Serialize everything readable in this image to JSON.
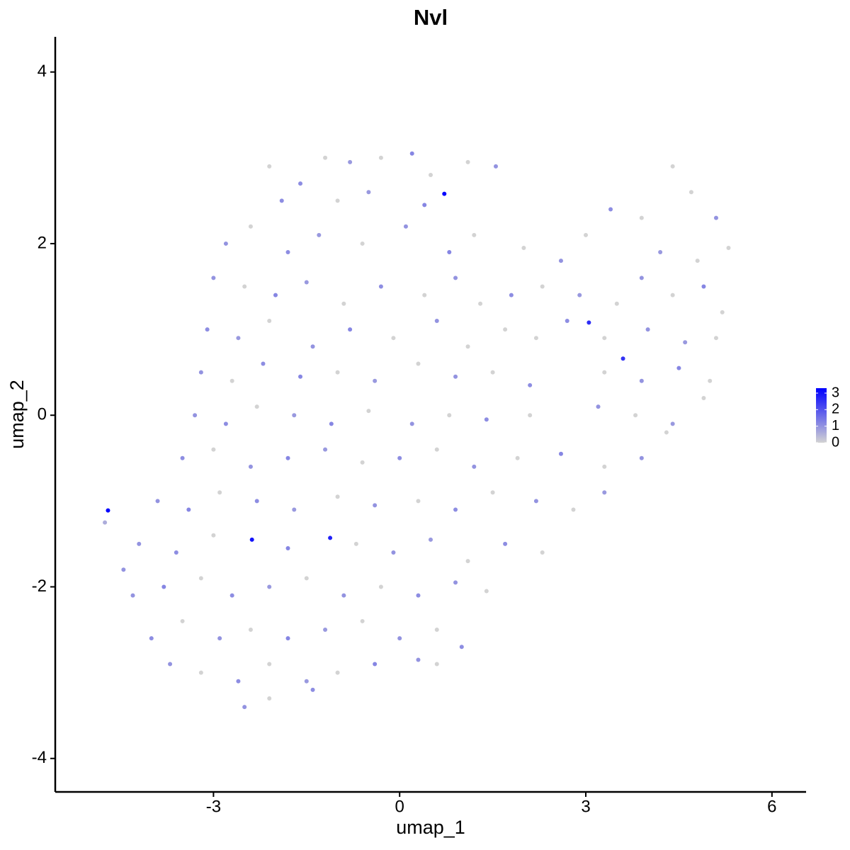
{
  "chart_data": {
    "type": "scatter",
    "title": "Nvl",
    "x_label": "umap_1",
    "y_label": "umap_2",
    "xlim": [
      -5.55,
      6.55
    ],
    "ylim": [
      -4.39,
      4.41
    ],
    "xticks": [
      -3,
      0,
      3,
      6
    ],
    "yticks": [
      -4,
      -2,
      0,
      2,
      4
    ],
    "grid": false,
    "color_low": "#d3d3d3",
    "color_high": "#0000ff",
    "clim": [
      0,
      3.3
    ],
    "cticks": [
      0,
      1,
      2,
      3
    ],
    "legend_position": "right",
    "x": [
      0.72,
      -4.7,
      -2.38,
      -1.12,
      3.05,
      3.6,
      -4.75,
      -4.45,
      -2.1,
      -1.6,
      -1.2,
      -0.8,
      -0.3,
      0.2,
      0.5,
      1.1,
      1.55,
      -1.9,
      -1.0,
      -0.5,
      0.4,
      -2.8,
      -2.4,
      -1.8,
      -1.3,
      -0.6,
      0.1,
      0.8,
      1.2,
      2.0,
      2.6,
      3.0,
      3.4,
      3.9,
      4.4,
      4.7,
      5.1,
      5.3,
      4.2,
      4.8,
      -3.0,
      -2.5,
      -2.0,
      -1.5,
      -0.9,
      -0.3,
      0.4,
      0.9,
      1.3,
      1.8,
      2.3,
      2.9,
      3.5,
      3.9,
      4.4,
      4.9,
      5.2,
      -3.1,
      -2.6,
      -2.1,
      -1.4,
      -0.8,
      -0.1,
      0.6,
      1.1,
      1.7,
      2.2,
      2.7,
      3.3,
      4.0,
      4.6,
      5.1,
      -3.2,
      -2.7,
      -2.2,
      -1.6,
      -1.0,
      -0.4,
      0.3,
      0.9,
      1.5,
      2.1,
      3.3,
      3.9,
      4.5,
      5.0,
      -3.3,
      -2.8,
      -2.3,
      -1.7,
      -1.1,
      -0.5,
      0.2,
      0.8,
      1.4,
      2.1,
      3.2,
      3.8,
      4.4,
      4.9,
      -3.5,
      -3.0,
      -2.4,
      -1.8,
      -1.2,
      -0.6,
      0.0,
      0.6,
      1.2,
      1.9,
      2.6,
      3.3,
      3.9,
      4.3,
      -3.9,
      -3.4,
      -2.9,
      -2.3,
      -1.7,
      -1.0,
      -0.4,
      0.3,
      0.9,
      1.5,
      2.2,
      2.8,
      3.3,
      -4.2,
      -3.6,
      -3.0,
      -1.8,
      -0.7,
      -0.1,
      0.5,
      1.1,
      1.7,
      2.3,
      -4.3,
      -3.8,
      -3.2,
      -2.7,
      -2.1,
      -1.5,
      -0.9,
      -0.3,
      0.3,
      0.9,
      1.4,
      -4.0,
      -3.5,
      -2.9,
      -2.4,
      -1.8,
      -1.2,
      -0.6,
      0.0,
      0.6,
      1.0,
      -3.7,
      -3.2,
      -2.6,
      -2.1,
      -1.5,
      -1.0,
      -0.4,
      0.3,
      0.6,
      -2.5,
      -2.1,
      -1.4
    ],
    "y": [
      2.58,
      -1.11,
      -1.45,
      -1.43,
      1.08,
      0.66,
      -1.25,
      -1.8,
      2.9,
      2.7,
      3.0,
      2.95,
      3.0,
      3.05,
      2.8,
      2.95,
      2.9,
      2.5,
      2.5,
      2.6,
      2.45,
      2.0,
      2.2,
      1.9,
      2.1,
      2.0,
      2.2,
      1.9,
      2.1,
      1.95,
      1.8,
      2.1,
      2.4,
      2.3,
      2.9,
      2.6,
      2.3,
      1.95,
      1.9,
      1.8,
      1.6,
      1.5,
      1.4,
      1.55,
      1.3,
      1.5,
      1.4,
      1.6,
      1.3,
      1.4,
      1.5,
      1.4,
      1.3,
      1.6,
      1.4,
      1.5,
      1.2,
      1.0,
      0.9,
      1.1,
      0.8,
      1.0,
      0.9,
      1.1,
      0.8,
      1.0,
      0.9,
      1.1,
      0.9,
      1.0,
      0.85,
      0.9,
      0.5,
      0.4,
      0.6,
      0.45,
      0.5,
      0.4,
      0.6,
      0.45,
      0.5,
      0.35,
      0.5,
      0.4,
      0.55,
      0.4,
      0.0,
      -0.1,
      0.1,
      0.0,
      -0.1,
      0.05,
      -0.1,
      0.0,
      -0.05,
      0.0,
      0.1,
      0.0,
      -0.1,
      0.2,
      -0.5,
      -0.4,
      -0.6,
      -0.5,
      -0.4,
      -0.55,
      -0.5,
      -0.4,
      -0.6,
      -0.5,
      -0.45,
      -0.6,
      -0.5,
      -0.2,
      -1.0,
      -1.1,
      -0.9,
      -1.0,
      -1.1,
      -0.95,
      -1.05,
      -1.0,
      -1.1,
      -0.9,
      -1.0,
      -1.1,
      -0.9,
      -1.5,
      -1.6,
      -1.4,
      -1.55,
      -1.5,
      -1.6,
      -1.45,
      -1.7,
      -1.5,
      -1.6,
      -2.1,
      -2.0,
      -1.9,
      -2.1,
      -2.0,
      -1.9,
      -2.1,
      -2.0,
      -2.1,
      -1.95,
      -2.05,
      -2.6,
      -2.4,
      -2.6,
      -2.5,
      -2.6,
      -2.5,
      -2.4,
      -2.6,
      -2.5,
      -2.7,
      -2.9,
      -3.0,
      -3.1,
      -2.9,
      -3.1,
      -3.0,
      -2.9,
      -2.85,
      -2.9,
      -3.4,
      -3.3,
      -3.2
    ],
    "values": [
      3.2,
      3.3,
      3.0,
      2.8,
      2.6,
      2.5,
      0.6,
      1.0,
      0,
      1.1,
      0,
      0.9,
      0,
      1.2,
      0,
      0,
      1.0,
      1.1,
      0,
      0.9,
      1.2,
      1.0,
      0,
      1.1,
      0.9,
      0,
      1.0,
      1.2,
      0,
      0,
      1.0,
      0,
      1.1,
      0,
      0,
      0,
      1.0,
      0,
      0.9,
      0,
      1.0,
      0,
      1.2,
      0.9,
      0,
      1.1,
      0,
      1.0,
      0,
      1.1,
      0,
      0.9,
      0,
      1.0,
      0,
      1.2,
      0,
      1.1,
      0.9,
      0,
      1.0,
      1.2,
      0,
      1.0,
      0,
      0,
      0,
      1.1,
      0,
      1.0,
      0.9,
      0,
      1.0,
      0,
      1.1,
      1.2,
      0,
      0.9,
      0,
      1.0,
      0,
      1.1,
      0,
      1.0,
      1.2,
      0,
      1.0,
      1.1,
      0,
      0.9,
      1.2,
      0,
      1.0,
      0,
      1.1,
      0,
      1.0,
      0,
      0.9,
      0,
      1.1,
      0,
      1.0,
      1.2,
      0.9,
      0,
      1.1,
      0,
      1.0,
      0,
      1.2,
      0,
      1.0,
      0,
      1.0,
      1.2,
      0,
      1.1,
      0.9,
      0,
      1.0,
      0,
      1.1,
      0,
      1.0,
      0,
      0.9,
      1.0,
      1.1,
      0,
      1.2,
      0,
      1.0,
      0.9,
      0,
      1.1,
      0,
      1.0,
      1.2,
      0,
      1.1,
      0.9,
      0,
      1.0,
      0,
      1.1,
      1.0,
      0,
      1.1,
      0,
      1.0,
      0,
      1.2,
      0.9,
      0,
      1.0,
      0,
      1.1,
      1.0,
      0,
      1.1,
      0,
      0.9,
      0,
      1.2,
      1.0,
      0,
      1.0,
      0,
      1.1
    ]
  }
}
